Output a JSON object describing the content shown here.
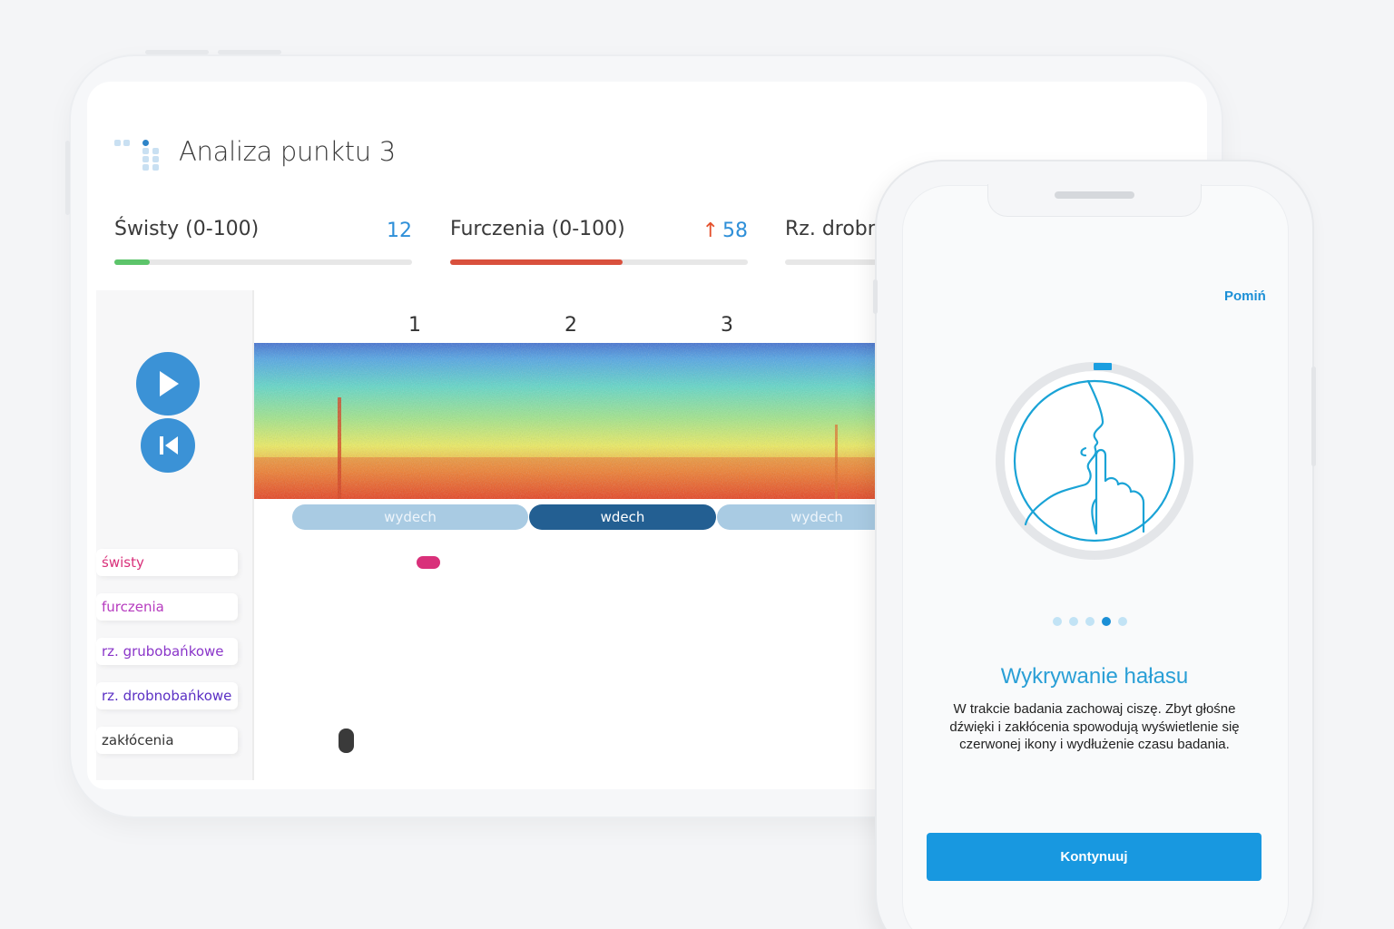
{
  "tablet": {
    "page_title": "Analiza punktu 3",
    "metrics": [
      {
        "label": "Świsty (0-100)",
        "value": "12",
        "trend": "",
        "fill_percent": 12,
        "color": "#5cc46a"
      },
      {
        "label": "Furczenia (0-100)",
        "value": "58",
        "trend": "↑",
        "fill_percent": 58,
        "color": "#d9503d"
      },
      {
        "label": "Rz. drobn",
        "value": "",
        "trend": "",
        "fill_percent": 0,
        "color": "#e7e7e7"
      }
    ],
    "controls": {
      "play_icon": "play-icon",
      "rewind_icon": "skip-back-icon",
      "accent": "#3b92d6"
    },
    "segments": [
      "1",
      "2",
      "3"
    ],
    "phases": [
      {
        "label": "wydech",
        "style": "light"
      },
      {
        "label": "wdech",
        "style": "dark"
      },
      {
        "label": "wydech",
        "style": "light"
      }
    ],
    "events": [
      {
        "label": "świsty",
        "color": "#d9307a"
      },
      {
        "label": "furczenia",
        "color": "#b63bbf"
      },
      {
        "label": "rz. grubobańkowe",
        "color": "#8a35c9"
      },
      {
        "label": "rz. drobnobańkowe",
        "color": "#5a2fc4"
      },
      {
        "label": "zakłócenia",
        "color": "#333333"
      }
    ]
  },
  "phone": {
    "skip_label": "Pomiń",
    "illustration_icon": "silence-face-icon",
    "pager": {
      "count": 5,
      "active": 4
    },
    "heading": "Wykrywanie hałasu",
    "body": "W trakcie badania zachowaj ciszę. Zbyt głośne dźwięki i zakłócenia spowodują wyświetlenie się czerwonej ikony i wydłużenie czasu badania.",
    "continue_label": "Kontynuuj",
    "accent": "#1898e0"
  }
}
